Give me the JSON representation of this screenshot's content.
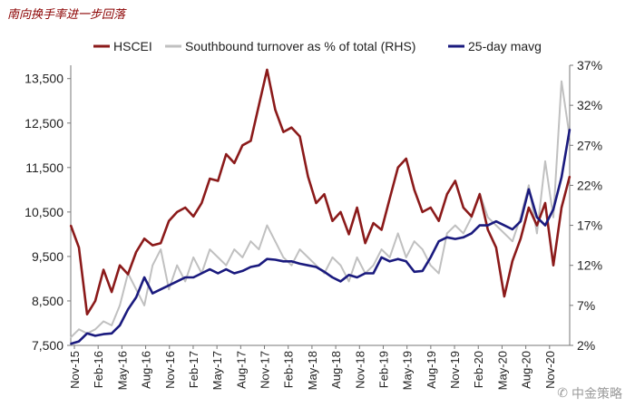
{
  "chart_data": {
    "type": "line",
    "title": "南向换手率进一步回落",
    "legend": {
      "position": "top",
      "entries": [
        {
          "name": "HSCEI",
          "color": "#8b1a1a"
        },
        {
          "name": "Southbound turnover as % of total (RHS)",
          "color": "#c0c0c0"
        },
        {
          "name": "25-day mavg",
          "color": "#1a1a7e"
        }
      ]
    },
    "x": {
      "tick_labels": [
        "Nov-15",
        "Feb-16",
        "May-16",
        "Aug-16",
        "Nov-16",
        "Feb-17",
        "May-17",
        "Aug-17",
        "Nov-17",
        "Feb-18",
        "May-18",
        "Aug-18",
        "Nov-18",
        "Feb-19",
        "May-19",
        "Aug-19",
        "Nov-19",
        "Feb-20",
        "May-20",
        "Aug-20",
        "Nov-20"
      ],
      "range": [
        0,
        61
      ]
    },
    "y_left": {
      "ticks": [
        7500,
        8500,
        9500,
        10500,
        11500,
        12500,
        13500
      ],
      "tick_labels": [
        "7,500",
        "8,500",
        "9,500",
        "10,500",
        "11,500",
        "12,500",
        "13,500"
      ],
      "range": [
        7500,
        13800
      ]
    },
    "y_right": {
      "ticks": [
        2,
        7,
        12,
        17,
        22,
        27,
        32,
        37
      ],
      "tick_labels": [
        "2%",
        "7%",
        "12%",
        "17%",
        "22%",
        "27%",
        "32%",
        "37%"
      ],
      "range": [
        2,
        37
      ]
    },
    "series": [
      {
        "name": "HSCEI",
        "axis": "left",
        "color": "#8b1a1a",
        "x": [
          0,
          1,
          2,
          3,
          4,
          5,
          6,
          7,
          8,
          9,
          10,
          11,
          12,
          13,
          14,
          15,
          16,
          17,
          18,
          19,
          20,
          21,
          22,
          23,
          24,
          25,
          26,
          27,
          28,
          29,
          30,
          31,
          32,
          33,
          34,
          35,
          36,
          37,
          38,
          39,
          40,
          41,
          42,
          43,
          44,
          45,
          46,
          47,
          48,
          49,
          50,
          51,
          52,
          53,
          54,
          55,
          56,
          57,
          58,
          59,
          60,
          61
        ],
        "values": [
          10200,
          9700,
          8200,
          8500,
          9200,
          8700,
          9300,
          9100,
          9600,
          9900,
          9750,
          9800,
          10300,
          10500,
          10600,
          10400,
          10700,
          11250,
          11200,
          11800,
          11600,
          12000,
          12100,
          12900,
          13700,
          12800,
          12300,
          12400,
          12200,
          11300,
          10700,
          10900,
          10300,
          10500,
          10000,
          10600,
          9800,
          10250,
          10100,
          10800,
          11500,
          11700,
          11000,
          10500,
          10600,
          10300,
          10900,
          11200,
          10600,
          10400,
          10900,
          10100,
          9700,
          8600,
          9400,
          9900,
          10600,
          10200,
          10700,
          9300,
          10600,
          11300
        ]
      },
      {
        "name": "Southbound turnover as % of total (RHS)",
        "axis": "right",
        "color": "#c0c0c0",
        "x": [
          0,
          1,
          2,
          3,
          4,
          5,
          6,
          7,
          8,
          9,
          10,
          11,
          12,
          13,
          14,
          15,
          16,
          17,
          18,
          19,
          20,
          21,
          22,
          23,
          24,
          25,
          26,
          27,
          28,
          29,
          30,
          31,
          32,
          33,
          34,
          35,
          36,
          37,
          38,
          39,
          40,
          41,
          42,
          43,
          44,
          45,
          46,
          47,
          48,
          49,
          50,
          51,
          52,
          53,
          54,
          55,
          56,
          57,
          58,
          59,
          60,
          61
        ],
        "values": [
          3,
          4,
          3.5,
          4,
          5,
          4.5,
          7,
          11,
          9,
          7,
          12,
          14,
          9,
          12,
          10,
          13,
          11,
          14,
          13,
          12,
          14,
          13,
          15,
          14,
          17,
          15,
          13,
          12,
          14,
          13,
          12,
          11,
          13,
          12,
          10,
          13,
          11,
          12,
          14,
          13,
          16,
          13,
          15,
          14,
          12,
          11,
          16,
          17,
          16,
          18,
          21,
          18,
          17,
          16,
          15,
          18,
          22,
          16,
          25,
          18,
          35,
          28
        ]
      },
      {
        "name": "25-day mavg",
        "axis": "right",
        "color": "#1a1a7e",
        "x": [
          0,
          1,
          2,
          3,
          4,
          5,
          6,
          7,
          8,
          9,
          10,
          11,
          12,
          13,
          14,
          15,
          16,
          17,
          18,
          19,
          20,
          21,
          22,
          23,
          24,
          25,
          26,
          27,
          28,
          29,
          30,
          31,
          32,
          33,
          34,
          35,
          36,
          37,
          38,
          39,
          40,
          41,
          42,
          43,
          44,
          45,
          46,
          47,
          48,
          49,
          50,
          51,
          52,
          53,
          54,
          55,
          56,
          57,
          58,
          59,
          60,
          61
        ],
        "values": [
          2.2,
          2.5,
          3.5,
          3.2,
          3.4,
          3.5,
          4.5,
          6.5,
          8,
          10.5,
          8.5,
          9,
          9.5,
          10,
          10.5,
          10.5,
          11,
          11.5,
          11,
          11.5,
          11,
          11.3,
          11.8,
          12,
          12.8,
          12.7,
          12.5,
          12.5,
          12.2,
          12,
          11.8,
          11.2,
          10.5,
          10,
          10.8,
          10.5,
          11,
          11,
          13,
          12.5,
          12.8,
          12.5,
          11.2,
          11.3,
          13,
          15,
          15.5,
          15.3,
          15.5,
          16,
          17,
          17,
          17.5,
          17,
          16.5,
          17.5,
          21.5,
          18,
          17,
          19,
          23,
          29
        ]
      }
    ]
  },
  "watermark": {
    "text": "中金策略",
    "icon": "wechat-icon"
  }
}
